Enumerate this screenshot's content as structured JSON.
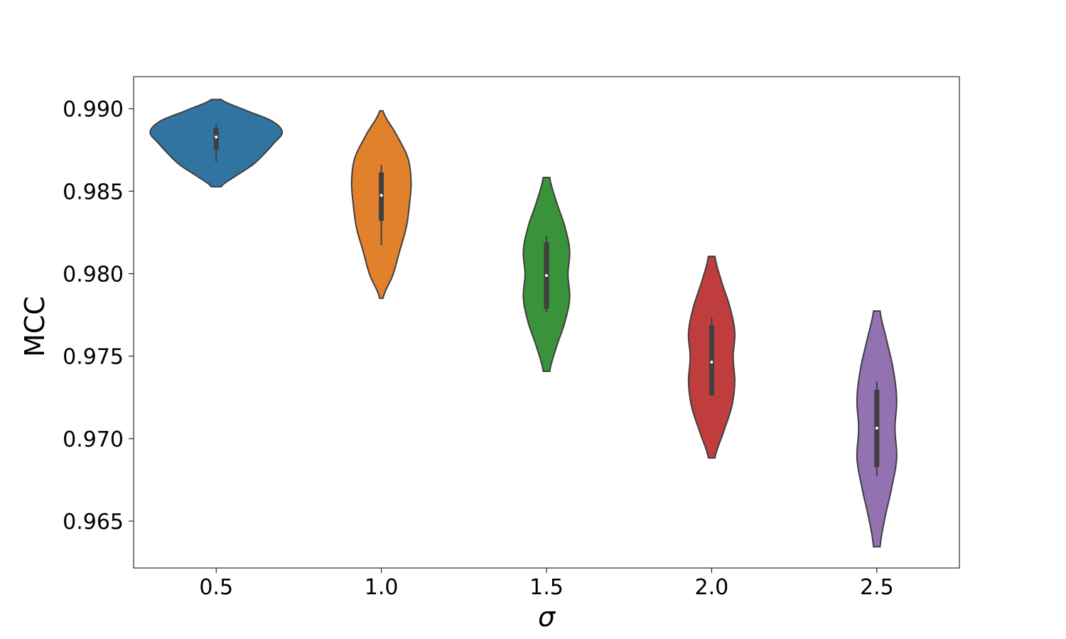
{
  "chart_data": {
    "type": "violin",
    "x_label": "σ",
    "y_label": "MCC",
    "categories": [
      "0.5",
      "1.0",
      "1.5",
      "2.0",
      "2.5"
    ],
    "colors": [
      "#3274a1",
      "#e1812c",
      "#3a923a",
      "#c03d3e",
      "#9372b2"
    ],
    "edge_color": "#3f3f3f",
    "stats": [
      {
        "kde_low": 0.98527,
        "kde_high": 0.99056,
        "min": 0.98677,
        "q1": 0.9875,
        "median": 0.98828,
        "q3": 0.98884,
        "max": 0.98905,
        "density": [
          0.03,
          0.12,
          0.22,
          0.29,
          0.35,
          0.4,
          0.34,
          0.18,
          0.03
        ]
      },
      {
        "kde_low": 0.97851,
        "kde_high": 0.98987,
        "min": 0.98174,
        "q1": 0.9832,
        "median": 0.98475,
        "q3": 0.98613,
        "max": 0.9866,
        "density": [
          0.01,
          0.07,
          0.11,
          0.15,
          0.17,
          0.18,
          0.16,
          0.09,
          0.01
        ]
      },
      {
        "kde_low": 0.97408,
        "kde_high": 0.98583,
        "min": 0.97765,
        "q1": 0.97787,
        "median": 0.97989,
        "q3": 0.98191,
        "max": 0.9823,
        "density": [
          0.02,
          0.06,
          0.11,
          0.14,
          0.13,
          0.14,
          0.11,
          0.06,
          0.02
        ]
      },
      {
        "kde_low": 0.96883,
        "kde_high": 0.98105,
        "min": 0.97262,
        "q1": 0.97262,
        "median": 0.97464,
        "q3": 0.97688,
        "max": 0.97735,
        "density": [
          0.02,
          0.07,
          0.12,
          0.14,
          0.13,
          0.14,
          0.11,
          0.06,
          0.02
        ]
      },
      {
        "kde_low": 0.96345,
        "kde_high": 0.97774,
        "min": 0.96771,
        "q1": 0.96827,
        "median": 0.97064,
        "q3": 0.97296,
        "max": 0.97348,
        "density": [
          0.02,
          0.05,
          0.09,
          0.12,
          0.11,
          0.12,
          0.1,
          0.06,
          0.02
        ]
      }
    ],
    "ylim": [
      0.96216,
      0.99194
    ],
    "yticks": [
      {
        "value": 0.965,
        "label": "0.965"
      },
      {
        "value": 0.97,
        "label": "0.970"
      },
      {
        "value": 0.975,
        "label": "0.975"
      },
      {
        "value": 0.98,
        "label": "0.980"
      },
      {
        "value": 0.985,
        "label": "0.985"
      },
      {
        "value": 0.99,
        "label": "0.990"
      }
    ]
  }
}
